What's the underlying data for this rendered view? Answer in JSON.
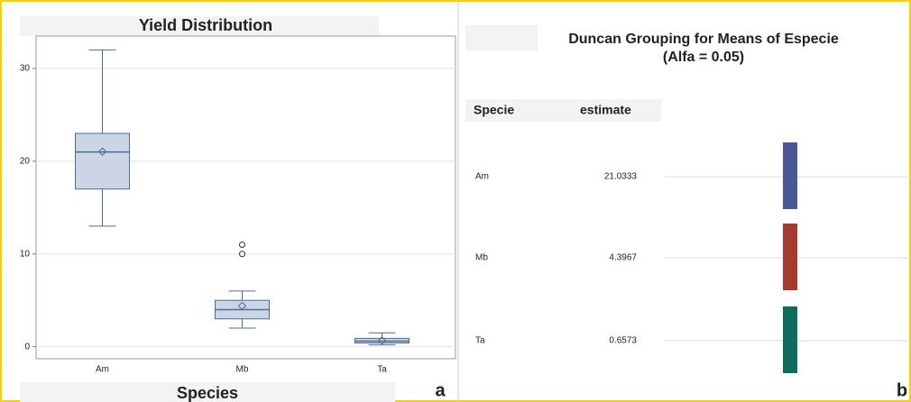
{
  "chart_data": [
    {
      "type": "box",
      "title": "Yield Distribution",
      "x_label": "Species",
      "panel_label": "a",
      "categories": [
        "Am",
        "Mb",
        "Ta"
      ],
      "boxes": [
        {
          "min": 13,
          "q1": 17,
          "median": 21,
          "q3": 23,
          "max": 32,
          "mean": 21.0333,
          "outliers": []
        },
        {
          "min": 2,
          "q1": 3,
          "median": 4,
          "q3": 5,
          "max": 6,
          "mean": 4.3967,
          "outliers": [
            10,
            11
          ]
        },
        {
          "min": 0.2,
          "q1": 0.4,
          "median": 0.6,
          "q3": 0.9,
          "max": 1.5,
          "mean": 0.6573,
          "outliers": []
        }
      ],
      "fill": "#cbd5e4",
      "color": "#4a6d9c",
      "ylim": [
        -1.3,
        33.5
      ],
      "yticks": [
        0,
        10,
        20,
        30
      ],
      "grid": true
    },
    {
      "type": "grouping",
      "title": "Duncan Grouping for Means of Especie",
      "subtitle": "(Alfa = 0.05)",
      "panel_label": "b",
      "columns": [
        "Specie",
        "estimate"
      ],
      "categories": [
        "Am",
        "Mb",
        "Ta"
      ],
      "values": [
        21.0333,
        4.3967,
        0.6573
      ],
      "colors": [
        "#4a5799",
        "#a53b2f",
        "#0f6b5d"
      ]
    }
  ]
}
